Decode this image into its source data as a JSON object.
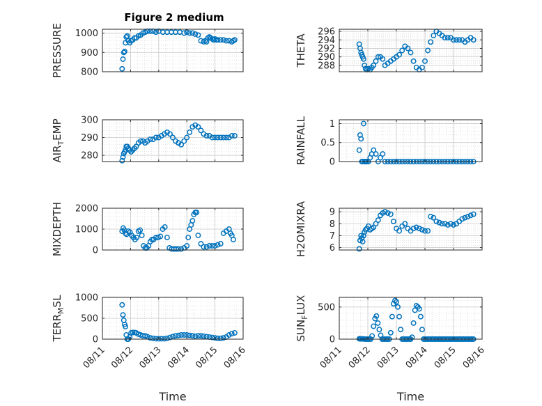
{
  "figure": {
    "title": "Figure 2 medium"
  },
  "style": {
    "marker_color": "#0072BD",
    "grid_color": "#d0d0d0",
    "axis_color": "#262626"
  },
  "x_ticks": [
    "08/11",
    "08/12",
    "08/13",
    "08/14",
    "08/15",
    "08/16"
  ],
  "chart_data": [
    {
      "type": "scatter",
      "title": "Figure 2 medium",
      "xlabel": "",
      "ylabel": "PRESSURE",
      "xlim": [
        0,
        5
      ],
      "ylim": [
        800,
        1020
      ],
      "yticks": [
        800,
        900,
        1000
      ],
      "yticklabels": [
        "800",
        "900",
        "1000"
      ],
      "grid": "on-with-minor",
      "marker": "open-circle",
      "x": [
        0.7,
        0.73,
        0.76,
        0.79,
        0.82,
        0.85,
        0.88,
        0.92,
        0.97,
        1.02,
        1.08,
        1.14,
        1.2,
        1.28,
        1.36,
        1.44,
        1.52,
        1.6,
        1.7,
        1.8,
        1.9,
        2.0,
        2.15,
        2.3,
        2.45,
        2.6,
        2.75,
        2.9,
        3.0,
        3.1,
        3.2,
        3.3,
        3.4,
        3.5,
        3.6,
        3.65,
        3.7,
        3.75,
        3.8,
        3.85,
        3.9,
        3.95,
        4.0,
        4.05,
        4.1,
        4.2,
        4.3,
        4.4,
        4.5,
        4.6,
        4.65,
        4.7
      ],
      "y": [
        815,
        865,
        900,
        905,
        950,
        980,
        985,
        960,
        950,
        960,
        965,
        975,
        975,
        985,
        990,
        1000,
        1005,
        1010,
        1010,
        1010,
        1005,
        1010,
        1005,
        1005,
        1005,
        1005,
        1005,
        1000,
        1005,
        1000,
        1000,
        995,
        990,
        960,
        955,
        960,
        955,
        975,
        980,
        975,
        970,
        965,
        970,
        965,
        965,
        965,
        965,
        960,
        960,
        955,
        960,
        965
      ]
    },
    {
      "type": "scatter",
      "xlabel": "",
      "ylabel": "THETA",
      "xlim": [
        0,
        5
      ],
      "ylim": [
        286.5,
        296.5
      ],
      "yticks": [
        288,
        290,
        292,
        294,
        296
      ],
      "yticklabels": [
        "288",
        "290",
        "292",
        "294",
        "296"
      ],
      "grid": "on-with-minor",
      "marker": "open-circle",
      "x": [
        0.7,
        0.73,
        0.76,
        0.79,
        0.82,
        0.85,
        0.88,
        0.92,
        0.97,
        1.02,
        1.08,
        1.14,
        1.2,
        1.28,
        1.36,
        1.44,
        1.52,
        1.6,
        1.7,
        1.8,
        1.9,
        2.0,
        2.1,
        2.2,
        2.3,
        2.4,
        2.5,
        2.6,
        2.7,
        2.8,
        2.9,
        3.0,
        3.1,
        3.2,
        3.3,
        3.4,
        3.5,
        3.6,
        3.7,
        3.8,
        3.9,
        4.0,
        4.1,
        4.2,
        4.3,
        4.4,
        4.5,
        4.6,
        4.7
      ],
      "y": [
        293.0,
        292.0,
        291.0,
        290.5,
        290.0,
        289.5,
        288.0,
        287.2,
        287.0,
        287.2,
        287.0,
        287.5,
        288.0,
        289.0,
        290.0,
        290.0,
        289.5,
        288.0,
        288.5,
        289.0,
        289.5,
        290.0,
        290.5,
        291.5,
        292.5,
        292.0,
        291.0,
        289.0,
        287.5,
        287.0,
        287.5,
        289.0,
        291.5,
        293.5,
        295.0,
        296.0,
        295.5,
        295.0,
        294.5,
        294.5,
        294.5,
        294.0,
        294.0,
        294.0,
        294.0,
        293.5,
        294.0,
        294.5,
        294.0
      ]
    },
    {
      "type": "scatter",
      "xlabel": "",
      "ylabel": "AIR_TEMP",
      "xlim": [
        0,
        5
      ],
      "ylim": [
        276.5,
        300
      ],
      "yticks": [
        280,
        290,
        300
      ],
      "yticklabels": [
        "280",
        "290",
        "300"
      ],
      "grid": "on-with-minor",
      "marker": "open-circle",
      "x": [
        0.7,
        0.73,
        0.76,
        0.79,
        0.82,
        0.85,
        0.88,
        0.92,
        0.97,
        1.02,
        1.08,
        1.14,
        1.2,
        1.28,
        1.36,
        1.44,
        1.52,
        1.6,
        1.7,
        1.8,
        1.9,
        2.0,
        2.1,
        2.2,
        2.3,
        2.4,
        2.5,
        2.6,
        2.7,
        2.8,
        2.9,
        3.0,
        3.1,
        3.2,
        3.3,
        3.4,
        3.5,
        3.6,
        3.7,
        3.8,
        3.9,
        4.0,
        4.1,
        4.2,
        4.3,
        4.4,
        4.5,
        4.6,
        4.7
      ],
      "y": [
        277,
        279,
        281,
        282,
        283,
        285,
        285,
        284,
        283,
        282,
        283,
        284,
        285,
        287,
        288,
        288,
        287,
        288,
        289,
        289,
        290,
        290,
        291,
        292,
        293,
        292,
        290,
        288,
        287,
        286,
        288,
        290,
        293,
        296,
        297,
        296,
        294,
        292,
        291,
        291,
        290,
        290,
        290,
        290,
        290,
        290,
        290,
        291,
        291
      ]
    },
    {
      "type": "scatter",
      "xlabel": "",
      "ylabel": "RAINFALL",
      "xlim": [
        0,
        5
      ],
      "ylim": [
        0,
        1.1
      ],
      "yticks": [
        0,
        0.5,
        1
      ],
      "yticklabels": [
        "0",
        "0.5",
        "1"
      ],
      "grid": "on-with-minor",
      "marker": "open-circle",
      "x": [
        0.7,
        0.73,
        0.76,
        0.79,
        0.82,
        0.85,
        0.88,
        0.92,
        0.97,
        1.02,
        1.08,
        1.14,
        1.2,
        1.28,
        1.36,
        1.44,
        1.52,
        1.6,
        1.7,
        1.8,
        1.9,
        2.0,
        2.1,
        2.2,
        2.3,
        2.4,
        2.5,
        2.6,
        2.7,
        2.8,
        2.9,
        3.0,
        3.1,
        3.2,
        3.3,
        3.4,
        3.5,
        3.6,
        3.7,
        3.8,
        3.9,
        4.0,
        4.1,
        4.2,
        4.3,
        4.4,
        4.5,
        4.6,
        4.7
      ],
      "y": [
        0.3,
        0.7,
        0.6,
        0,
        0,
        1.0,
        0,
        0,
        0,
        0,
        0.1,
        0.2,
        0.3,
        0.2,
        0,
        0.1,
        0.2,
        0,
        0,
        0,
        0,
        0,
        0,
        0,
        0,
        0,
        0,
        0,
        0,
        0,
        0,
        0,
        0,
        0,
        0,
        0,
        0,
        0,
        0,
        0,
        0,
        0,
        0,
        0,
        0,
        0,
        0,
        0,
        0
      ]
    },
    {
      "type": "scatter",
      "xlabel": "",
      "ylabel": "MIXDEPTH",
      "xlim": [
        0,
        5
      ],
      "ylim": [
        0,
        2000
      ],
      "yticks": [
        0,
        1000,
        2000
      ],
      "yticklabels": [
        "0",
        "1000",
        "2000"
      ],
      "grid": "on-with-minor",
      "marker": "open-circle",
      "x": [
        0.7,
        0.74,
        0.78,
        0.82,
        0.86,
        0.92,
        0.98,
        1.04,
        1.1,
        1.16,
        1.22,
        1.28,
        1.34,
        1.4,
        1.46,
        1.52,
        1.58,
        1.64,
        1.7,
        1.76,
        1.82,
        1.9,
        1.98,
        2.06,
        2.14,
        2.22,
        2.3,
        2.38,
        2.46,
        2.54,
        2.62,
        2.7,
        2.8,
        2.9,
        3.0,
        3.05,
        3.1,
        3.15,
        3.2,
        3.25,
        3.3,
        3.35,
        3.4,
        3.5,
        3.6,
        3.7,
        3.8,
        3.9,
        4.0,
        4.1,
        4.2,
        4.3,
        4.4,
        4.5,
        4.55,
        4.6,
        4.65
      ],
      "y": [
        900,
        1050,
        950,
        800,
        750,
        900,
        850,
        700,
        600,
        500,
        600,
        900,
        950,
        700,
        200,
        100,
        100,
        200,
        400,
        500,
        500,
        600,
        600,
        650,
        1000,
        1100,
        600,
        100,
        50,
        50,
        50,
        50,
        50,
        100,
        200,
        600,
        1000,
        1200,
        1400,
        1700,
        1800,
        1800,
        700,
        300,
        150,
        150,
        200,
        200,
        200,
        250,
        300,
        800,
        900,
        1000,
        800,
        700,
        500
      ]
    },
    {
      "type": "scatter",
      "xlabel": "",
      "ylabel": "H2OMIXRA",
      "xlim": [
        0,
        5
      ],
      "ylim": [
        5.8,
        9.3
      ],
      "yticks": [
        6,
        7,
        8,
        9
      ],
      "yticklabels": [
        "6",
        "7",
        "8",
        "9"
      ],
      "grid": "on-with-minor",
      "marker": "open-circle",
      "x": [
        0.7,
        0.73,
        0.76,
        0.79,
        0.82,
        0.85,
        0.88,
        0.92,
        0.97,
        1.02,
        1.08,
        1.14,
        1.2,
        1.28,
        1.36,
        1.44,
        1.52,
        1.6,
        1.7,
        1.8,
        1.9,
        2.0,
        2.1,
        2.2,
        2.3,
        2.4,
        2.5,
        2.6,
        2.7,
        2.8,
        2.9,
        3.0,
        3.1,
        3.2,
        3.3,
        3.4,
        3.5,
        3.6,
        3.7,
        3.8,
        3.9,
        4.0,
        4.1,
        4.2,
        4.3,
        4.4,
        4.5,
        4.6,
        4.7
      ],
      "y": [
        5.9,
        6.6,
        7.0,
        6.8,
        6.5,
        7.0,
        7.3,
        7.5,
        7.6,
        7.8,
        7.5,
        7.6,
        7.7,
        8.0,
        8.3,
        8.7,
        8.9,
        9.0,
        8.9,
        8.8,
        8.2,
        7.6,
        7.4,
        7.8,
        8.0,
        7.6,
        7.4,
        7.6,
        7.7,
        7.6,
        7.5,
        7.4,
        7.4,
        8.6,
        8.5,
        8.2,
        8.1,
        8.0,
        8.0,
        7.9,
        8.0,
        7.9,
        8.0,
        8.2,
        8.4,
        8.5,
        8.6,
        8.7,
        8.8
      ]
    },
    {
      "type": "scatter",
      "xlabel": "Time",
      "ylabel": "TERR_MSL",
      "xlim": [
        0,
        5
      ],
      "ylim": [
        0,
        1000
      ],
      "yticks": [
        0,
        500,
        1000
      ],
      "yticklabels": [
        "0",
        "500",
        "1000"
      ],
      "grid": "on-with-minor",
      "marker": "open-circle",
      "x": [
        0.7,
        0.73,
        0.76,
        0.79,
        0.82,
        0.85,
        0.88,
        0.92,
        0.97,
        1.02,
        1.08,
        1.14,
        1.2,
        1.28,
        1.36,
        1.44,
        1.52,
        1.6,
        1.7,
        1.8,
        1.9,
        2.0,
        2.1,
        2.2,
        2.3,
        2.4,
        2.5,
        2.6,
        2.7,
        2.8,
        2.9,
        3.0,
        3.1,
        3.2,
        3.3,
        3.4,
        3.5,
        3.6,
        3.7,
        3.8,
        3.9,
        4.0,
        4.1,
        4.2,
        4.3,
        4.4,
        4.5,
        4.6,
        4.7
      ],
      "y": [
        820,
        580,
        450,
        350,
        300,
        100,
        0,
        0,
        50,
        150,
        160,
        160,
        150,
        120,
        100,
        80,
        80,
        60,
        30,
        20,
        10,
        10,
        10,
        10,
        20,
        40,
        60,
        80,
        90,
        100,
        100,
        100,
        90,
        80,
        70,
        80,
        80,
        70,
        60,
        50,
        40,
        30,
        20,
        20,
        30,
        50,
        100,
        130,
        150
      ]
    },
    {
      "type": "scatter",
      "xlabel": "Time",
      "ylabel": "SUN_FLUX",
      "xlim": [
        0,
        5
      ],
      "ylim": [
        0,
        650
      ],
      "yticks": [
        0,
        500
      ],
      "yticklabels": [
        "0",
        "500"
      ],
      "grid": "on-with-minor",
      "marker": "open-circle",
      "x": [
        0.7,
        0.74,
        0.78,
        0.82,
        0.86,
        0.9,
        0.95,
        1.0,
        1.05,
        1.1,
        1.15,
        1.2,
        1.25,
        1.3,
        1.35,
        1.4,
        1.45,
        1.5,
        1.55,
        1.6,
        1.65,
        1.7,
        1.75,
        1.8,
        1.85,
        1.9,
        1.95,
        2.0,
        2.05,
        2.1,
        2.15,
        2.2,
        2.25,
        2.3,
        2.35,
        2.4,
        2.45,
        2.5,
        2.55,
        2.6,
        2.65,
        2.7,
        2.75,
        2.8,
        2.85,
        2.9,
        2.95,
        3.0,
        3.05,
        3.1,
        3.15,
        3.2,
        3.25,
        3.3,
        3.35,
        3.4,
        3.45,
        3.5,
        3.55,
        3.6,
        3.65,
        3.7,
        3.75,
        3.8,
        3.85,
        3.9,
        3.95,
        4.0,
        4.05,
        4.1,
        4.15,
        4.2,
        4.25,
        4.3,
        4.35,
        4.4,
        4.45,
        4.5,
        4.55,
        4.6,
        4.65,
        4.7
      ],
      "y": [
        5,
        5,
        3,
        3,
        3,
        0,
        0,
        0,
        0,
        0,
        50,
        200,
        320,
        360,
        250,
        150,
        60,
        0,
        0,
        0,
        0,
        0,
        0,
        100,
        350,
        550,
        600,
        580,
        500,
        350,
        150,
        0,
        0,
        0,
        0,
        0,
        0,
        0,
        30,
        250,
        450,
        520,
        500,
        470,
        350,
        150,
        0,
        0,
        0,
        0,
        0,
        0,
        0,
        0,
        0,
        0,
        0,
        0,
        0,
        0,
        0,
        0,
        0,
        0,
        0,
        0,
        0,
        0,
        0,
        0,
        0,
        0,
        0,
        0,
        0,
        0,
        0,
        0,
        0,
        0,
        0,
        0
      ]
    }
  ]
}
